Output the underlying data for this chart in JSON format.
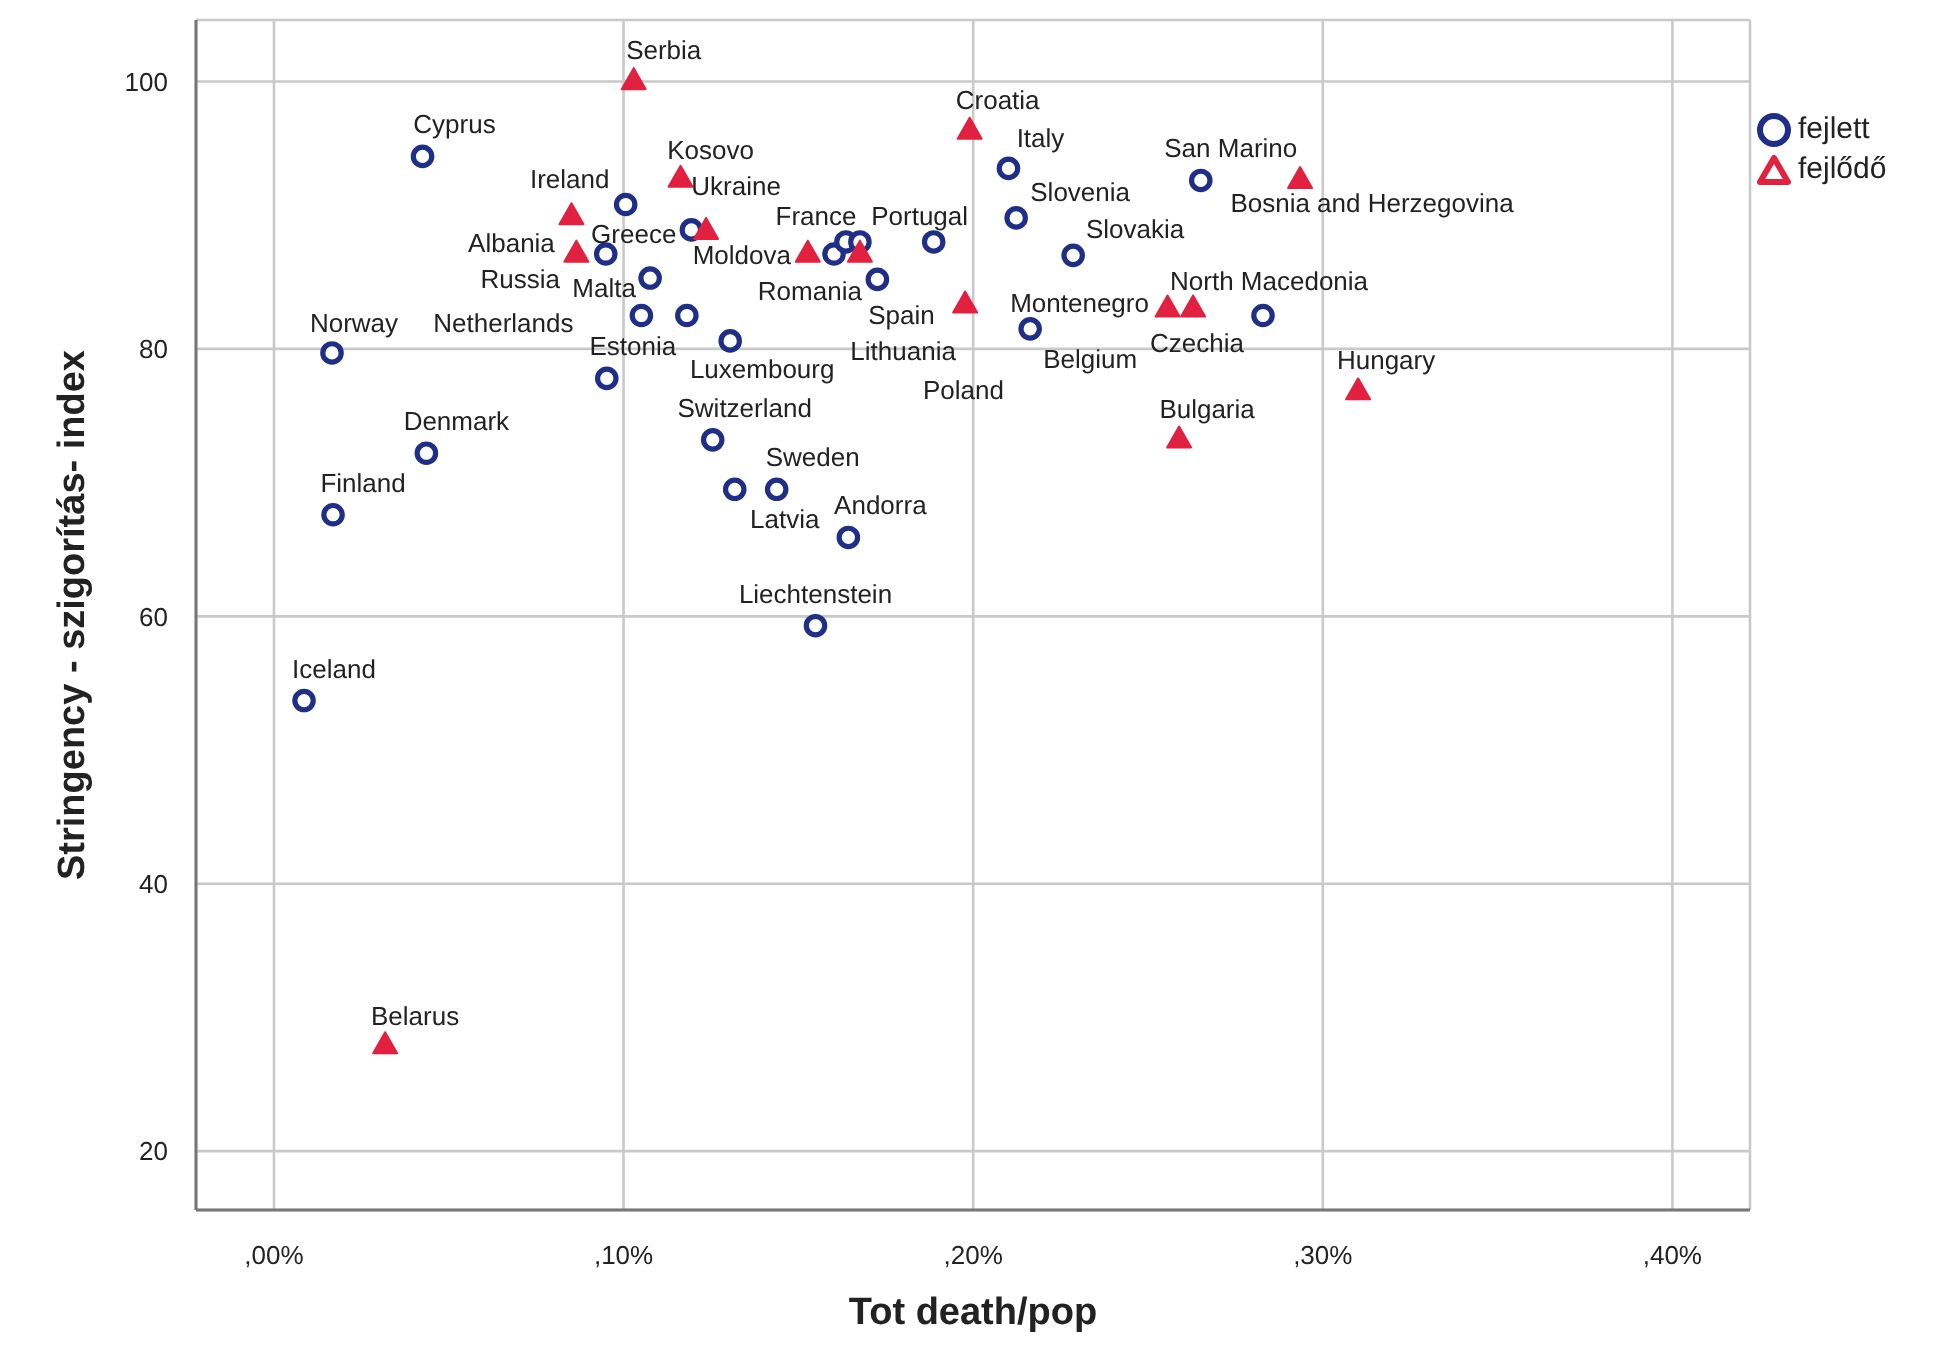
{
  "chart_data": {
    "type": "scatter",
    "xlabel": "Tot death/pop",
    "ylabel": "Stringency - szigorítás- index",
    "xlim": [
      -0.0223,
      0.4222
    ],
    "ylim": [
      15.6,
      104.6
    ],
    "xticks": [
      {
        "value": 0,
        "label": ",00%"
      },
      {
        "value": 0.1,
        "label": ",10%"
      },
      {
        "value": 0.2,
        "label": ",20%"
      },
      {
        "value": 0.3,
        "label": ",30%"
      },
      {
        "value": 0.4,
        "label": ",40%"
      }
    ],
    "yticks": [
      20,
      40,
      60,
      80,
      100
    ],
    "grid": true,
    "legend": "top right",
    "series": [
      {
        "name": "fejlett",
        "color": "#1f2e86",
        "marker": "circle",
        "x": [
          0.0425,
          0.1006,
          0.1194,
          0.0949,
          0.1076,
          0.1051,
          0.1181,
          0.0166,
          0.1305,
          0.0952,
          0.0436,
          0.1255,
          0.0169,
          0.1318,
          0.1438,
          0.2101,
          0.2123,
          0.1602,
          0.1636,
          0.1676,
          0.1887,
          0.2286,
          0.1726,
          0.2163,
          0.2829,
          0.2651,
          0.1643,
          0.1549,
          0.0086
        ],
        "values": [
          94.4,
          90.8,
          88.9,
          87.1,
          85.3,
          82.5,
          82.5,
          79.7,
          80.6,
          77.8,
          72.2,
          73.2,
          67.6,
          69.5,
          69.5,
          93.5,
          89.8,
          87.1,
          88.0,
          88.0,
          88.0,
          87.0,
          85.2,
          81.5,
          82.5,
          92.6,
          65.9,
          59.3,
          53.7
        ]
      },
      {
        "name": "fejlődő",
        "color": "#e2203f",
        "marker": "triangle",
        "x": [
          0.1029,
          0.1163,
          0.0851,
          0.1236,
          0.0865,
          0.1527,
          0.1676,
          0.199,
          0.1977,
          0.2556,
          0.2629,
          0.2935,
          0.2589,
          0.3101,
          0.0318
        ],
        "values": [
          100.1,
          92.8,
          90.0,
          88.9,
          87.2,
          87.2,
          87.2,
          96.4,
          83.4,
          83.1,
          83.1,
          92.7,
          73.3,
          76.9,
          28.0
        ]
      }
    ],
    "annotations": [
      {
        "text": "Serbia",
        "x": 0.1029,
        "y": 100.1
      },
      {
        "text": "Cyprus",
        "x": 0.0425,
        "y": 94.4
      },
      {
        "text": "Kosovo",
        "x": 0.1163,
        "y": 92.8
      },
      {
        "text": "Ireland",
        "x": 0.1006,
        "y": 90.8
      },
      {
        "text": "Ukraine",
        "x": 0.1236,
        "y": 88.9
      },
      {
        "text": "Greece",
        "x": 0.0949,
        "y": 87.1
      },
      {
        "text": "Albania",
        "x": 0.0851,
        "y": 90.0
      },
      {
        "text": "Russia",
        "x": 0.0865,
        "y": 87.2
      },
      {
        "text": "Malta",
        "x": 0.1076,
        "y": 85.3
      },
      {
        "text": "Netherlands",
        "x": 0.1051,
        "y": 82.5
      },
      {
        "text": "Norway",
        "x": 0.0166,
        "y": 79.7
      },
      {
        "text": "Luxembourg",
        "x": 0.1305,
        "y": 80.6
      },
      {
        "text": "Estonia",
        "x": 0.0952,
        "y": 77.8
      },
      {
        "text": "Denmark",
        "x": 0.0436,
        "y": 72.2
      },
      {
        "text": "Switzerland",
        "x": 0.1255,
        "y": 73.2
      },
      {
        "text": "Finland",
        "x": 0.0169,
        "y": 67.6
      },
      {
        "text": "Latvia",
        "x": 0.1318,
        "y": 69.5
      },
      {
        "text": "Sweden",
        "x": 0.1438,
        "y": 69.5
      },
      {
        "text": "Croatia",
        "x": 0.199,
        "y": 96.4
      },
      {
        "text": "Italy",
        "x": 0.2101,
        "y": 93.5
      },
      {
        "text": "Slovenia",
        "x": 0.2123,
        "y": 89.8
      },
      {
        "text": "Moldova",
        "x": 0.1527,
        "y": 87.2
      },
      {
        "text": "France",
        "x": 0.1602,
        "y": 87.1
      },
      {
        "text": "Lithuania",
        "x": 0.1977,
        "y": 83.4
      },
      {
        "text": "Romania",
        "x": 0.1676,
        "y": 87.2
      },
      {
        "text": "Portugal",
        "x": 0.1887,
        "y": 88.0
      },
      {
        "text": "Slovakia",
        "x": 0.2286,
        "y": 87.0
      },
      {
        "text": "Spain",
        "x": 0.1726,
        "y": 85.2
      },
      "Poland",
      {
        "text": "Belgium",
        "x": 0.2163,
        "y": 81.5
      },
      {
        "text": "Montenegro",
        "x": 0.2556,
        "y": 83.1
      },
      {
        "text": "North Macedonia",
        "x": 0.2629,
        "y": 83.1
      },
      {
        "text": "Czechia",
        "x": 0.2829,
        "y": 82.5
      },
      {
        "text": "San Marino",
        "x": 0.2651,
        "y": 92.6
      },
      {
        "text": "Bosnia and Herzegovina",
        "x": 0.2935,
        "y": 92.7
      },
      {
        "text": "Bulgaria",
        "x": 0.2589,
        "y": 73.3
      },
      {
        "text": "Andorra",
        "x": 0.1643,
        "y": 65.9
      },
      {
        "text": "Liechtenstein",
        "x": 0.1549,
        "y": 59.3
      },
      {
        "text": "Hungary",
        "x": 0.3101,
        "y": 76.9
      },
      {
        "text": "Iceland",
        "x": 0.0086,
        "y": 53.7
      },
      {
        "text": "Belarus",
        "x": 0.0318,
        "y": 28.0
      }
    ]
  }
}
